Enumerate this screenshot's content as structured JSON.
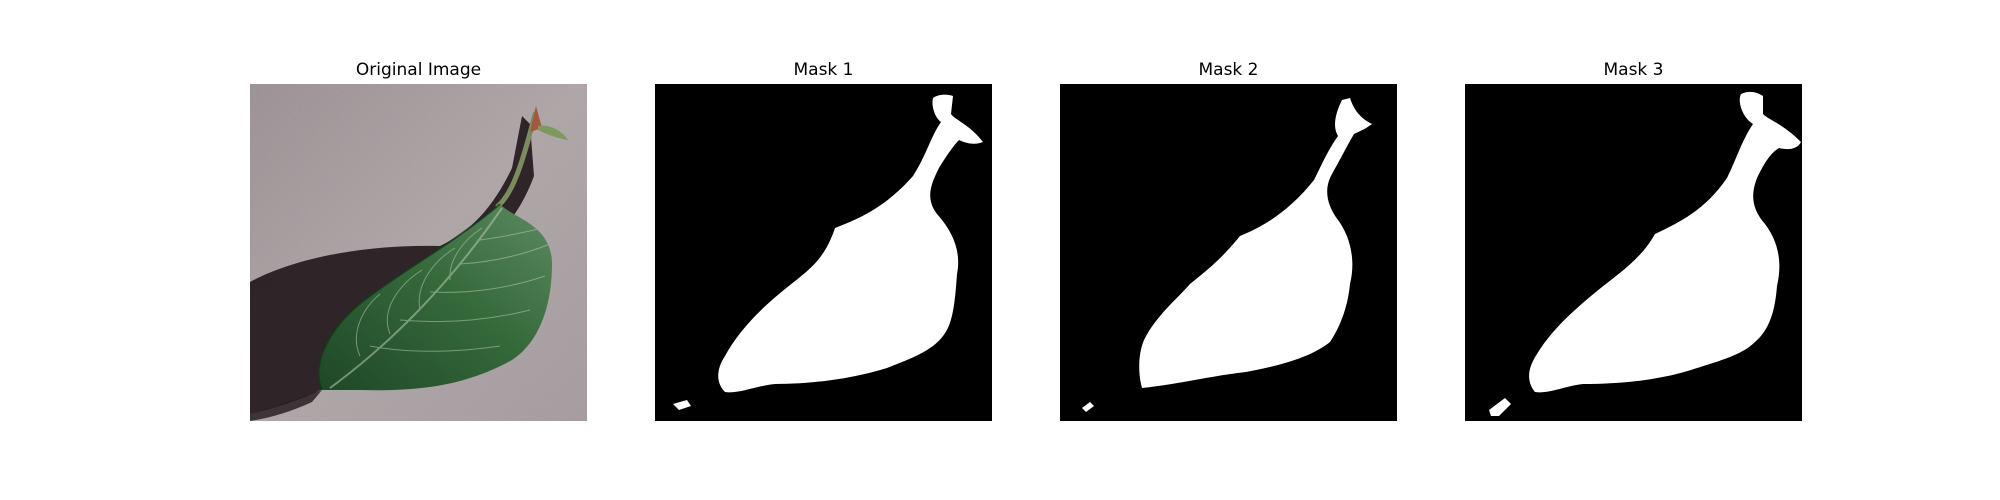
{
  "figure": {
    "panels": [
      {
        "title": "Original Image",
        "kind": "photo"
      },
      {
        "title": "Mask 1",
        "kind": "mask",
        "variant": 1
      },
      {
        "title": "Mask 2",
        "kind": "mask",
        "variant": 2
      },
      {
        "title": "Mask 3",
        "kind": "mask",
        "variant": 3
      }
    ]
  },
  "colors": {
    "background": "#ffffff",
    "mask_background": "#000000",
    "mask_foreground": "#ffffff",
    "surface": "#a49a9c",
    "leaf_dark": "#1f4a26",
    "leaf_light": "#6f9871",
    "stem": "#9b7a62"
  }
}
